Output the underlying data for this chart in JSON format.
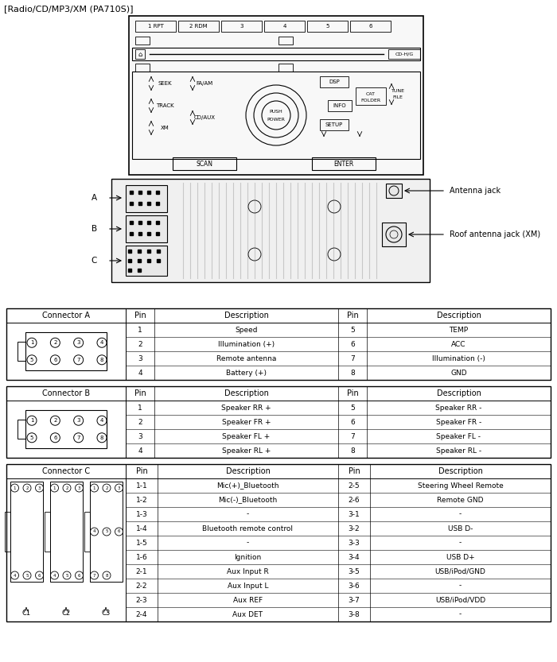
{
  "title": "[Radio/CD/MP3/XM (PA710S)]",
  "connector_a": {
    "label": "Connector A",
    "header": [
      "Pin",
      "Description",
      "Pin",
      "Description"
    ],
    "rows": [
      [
        "1",
        "Speed",
        "5",
        "TEMP"
      ],
      [
        "2",
        "Illumination (+)",
        "6",
        "ACC"
      ],
      [
        "3",
        "Remote antenna",
        "7",
        "Illumination (-)"
      ],
      [
        "4",
        "Battery (+)",
        "8",
        "GND"
      ]
    ]
  },
  "connector_b": {
    "label": "Connector B",
    "header": [
      "Pin",
      "Description",
      "Pin",
      "Description"
    ],
    "rows": [
      [
        "1",
        "Speaker RR +",
        "5",
        "Speaker RR -"
      ],
      [
        "2",
        "Speaker FR +",
        "6",
        "Speaker FR -"
      ],
      [
        "3",
        "Speaker FL +",
        "7",
        "Speaker FL -"
      ],
      [
        "4",
        "Speaker RL +",
        "8",
        "Speaker RL -"
      ]
    ]
  },
  "connector_c": {
    "label": "Connector C",
    "header": [
      "Pin",
      "Description",
      "Pin",
      "Description"
    ],
    "rows": [
      [
        "1-1",
        "Mic(+)_Bluetooth",
        "2-5",
        "Steering Wheel Remote"
      ],
      [
        "1-2",
        "Mic(-)_Bluetooth",
        "2-6",
        "Remote GND"
      ],
      [
        "1-3",
        "-",
        "3-1",
        "-"
      ],
      [
        "1-4",
        "Bluetooth remote control",
        "3-2",
        "USB D-"
      ],
      [
        "1-5",
        "-",
        "3-3",
        "-"
      ],
      [
        "1-6",
        "Ignition",
        "3-4",
        "USB D+"
      ],
      [
        "2-1",
        "Aux Input R",
        "3-5",
        "USB/iPod/GND"
      ],
      [
        "2-2",
        "Aux Input L",
        "3-6",
        "-"
      ],
      [
        "2-3",
        "Aux REF",
        "3-7",
        "USB/iPod/VDD"
      ],
      [
        "2-4",
        "Aux DET",
        "3-8",
        "-"
      ]
    ]
  },
  "antenna_label": "Antenna jack",
  "roof_antenna_label": "Roof antenna jack (XM)",
  "bg_color": "#ffffff"
}
